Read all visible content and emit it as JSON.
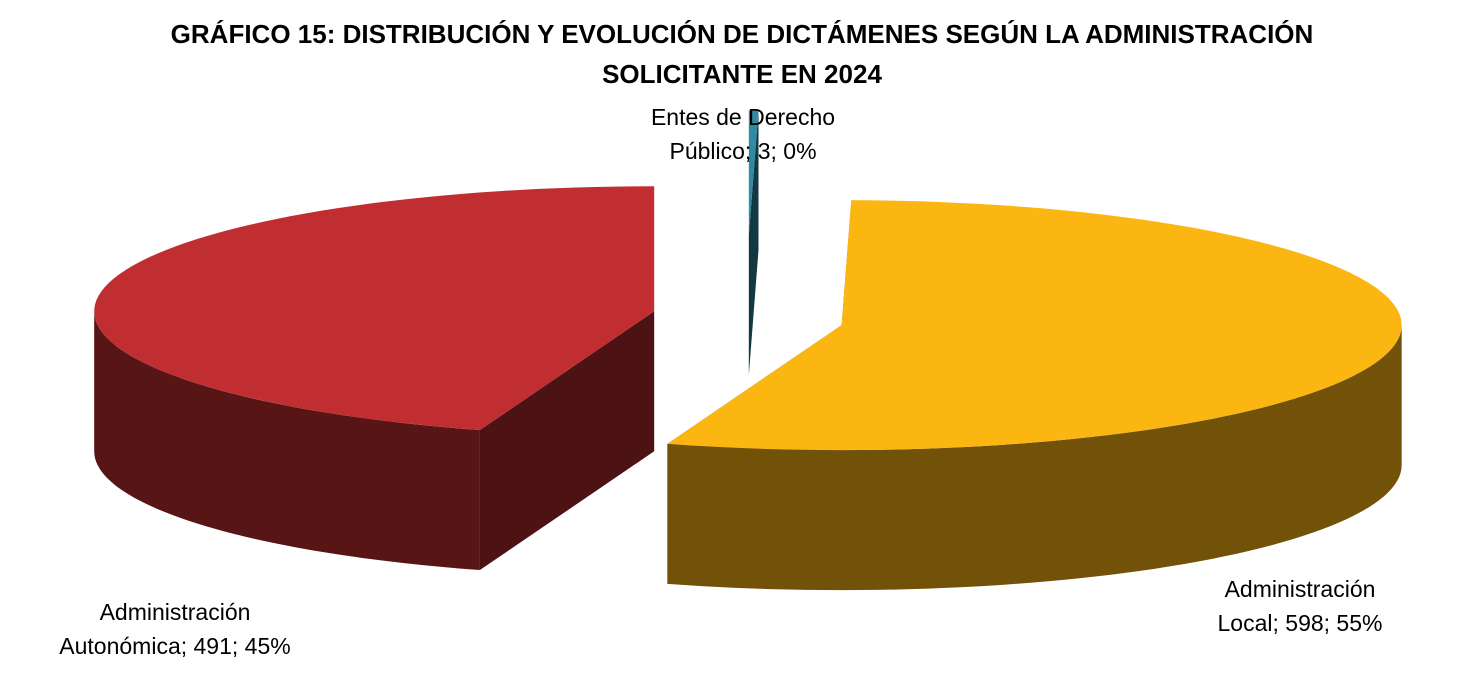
{
  "chart_data": {
    "type": "pie",
    "three_d": true,
    "exploded": true,
    "title": "GRÁFICO 15: DISTRIBUCIÓN Y EVOLUCIÓN DE DICTÁMENES SEGÚN LA ADMINISTRACIÓN SOLICITANTE EN 2024",
    "values": [
      3,
      598,
      491
    ],
    "value_labels": [
      "Entes de Derecho Público; 3; 0%",
      "Administración Local; 598; 55%",
      "Administración Autonómica; 491; 45%"
    ],
    "colors": [
      "#2e8ba3",
      "#fbb612",
      "#c12e31"
    ]
  }
}
